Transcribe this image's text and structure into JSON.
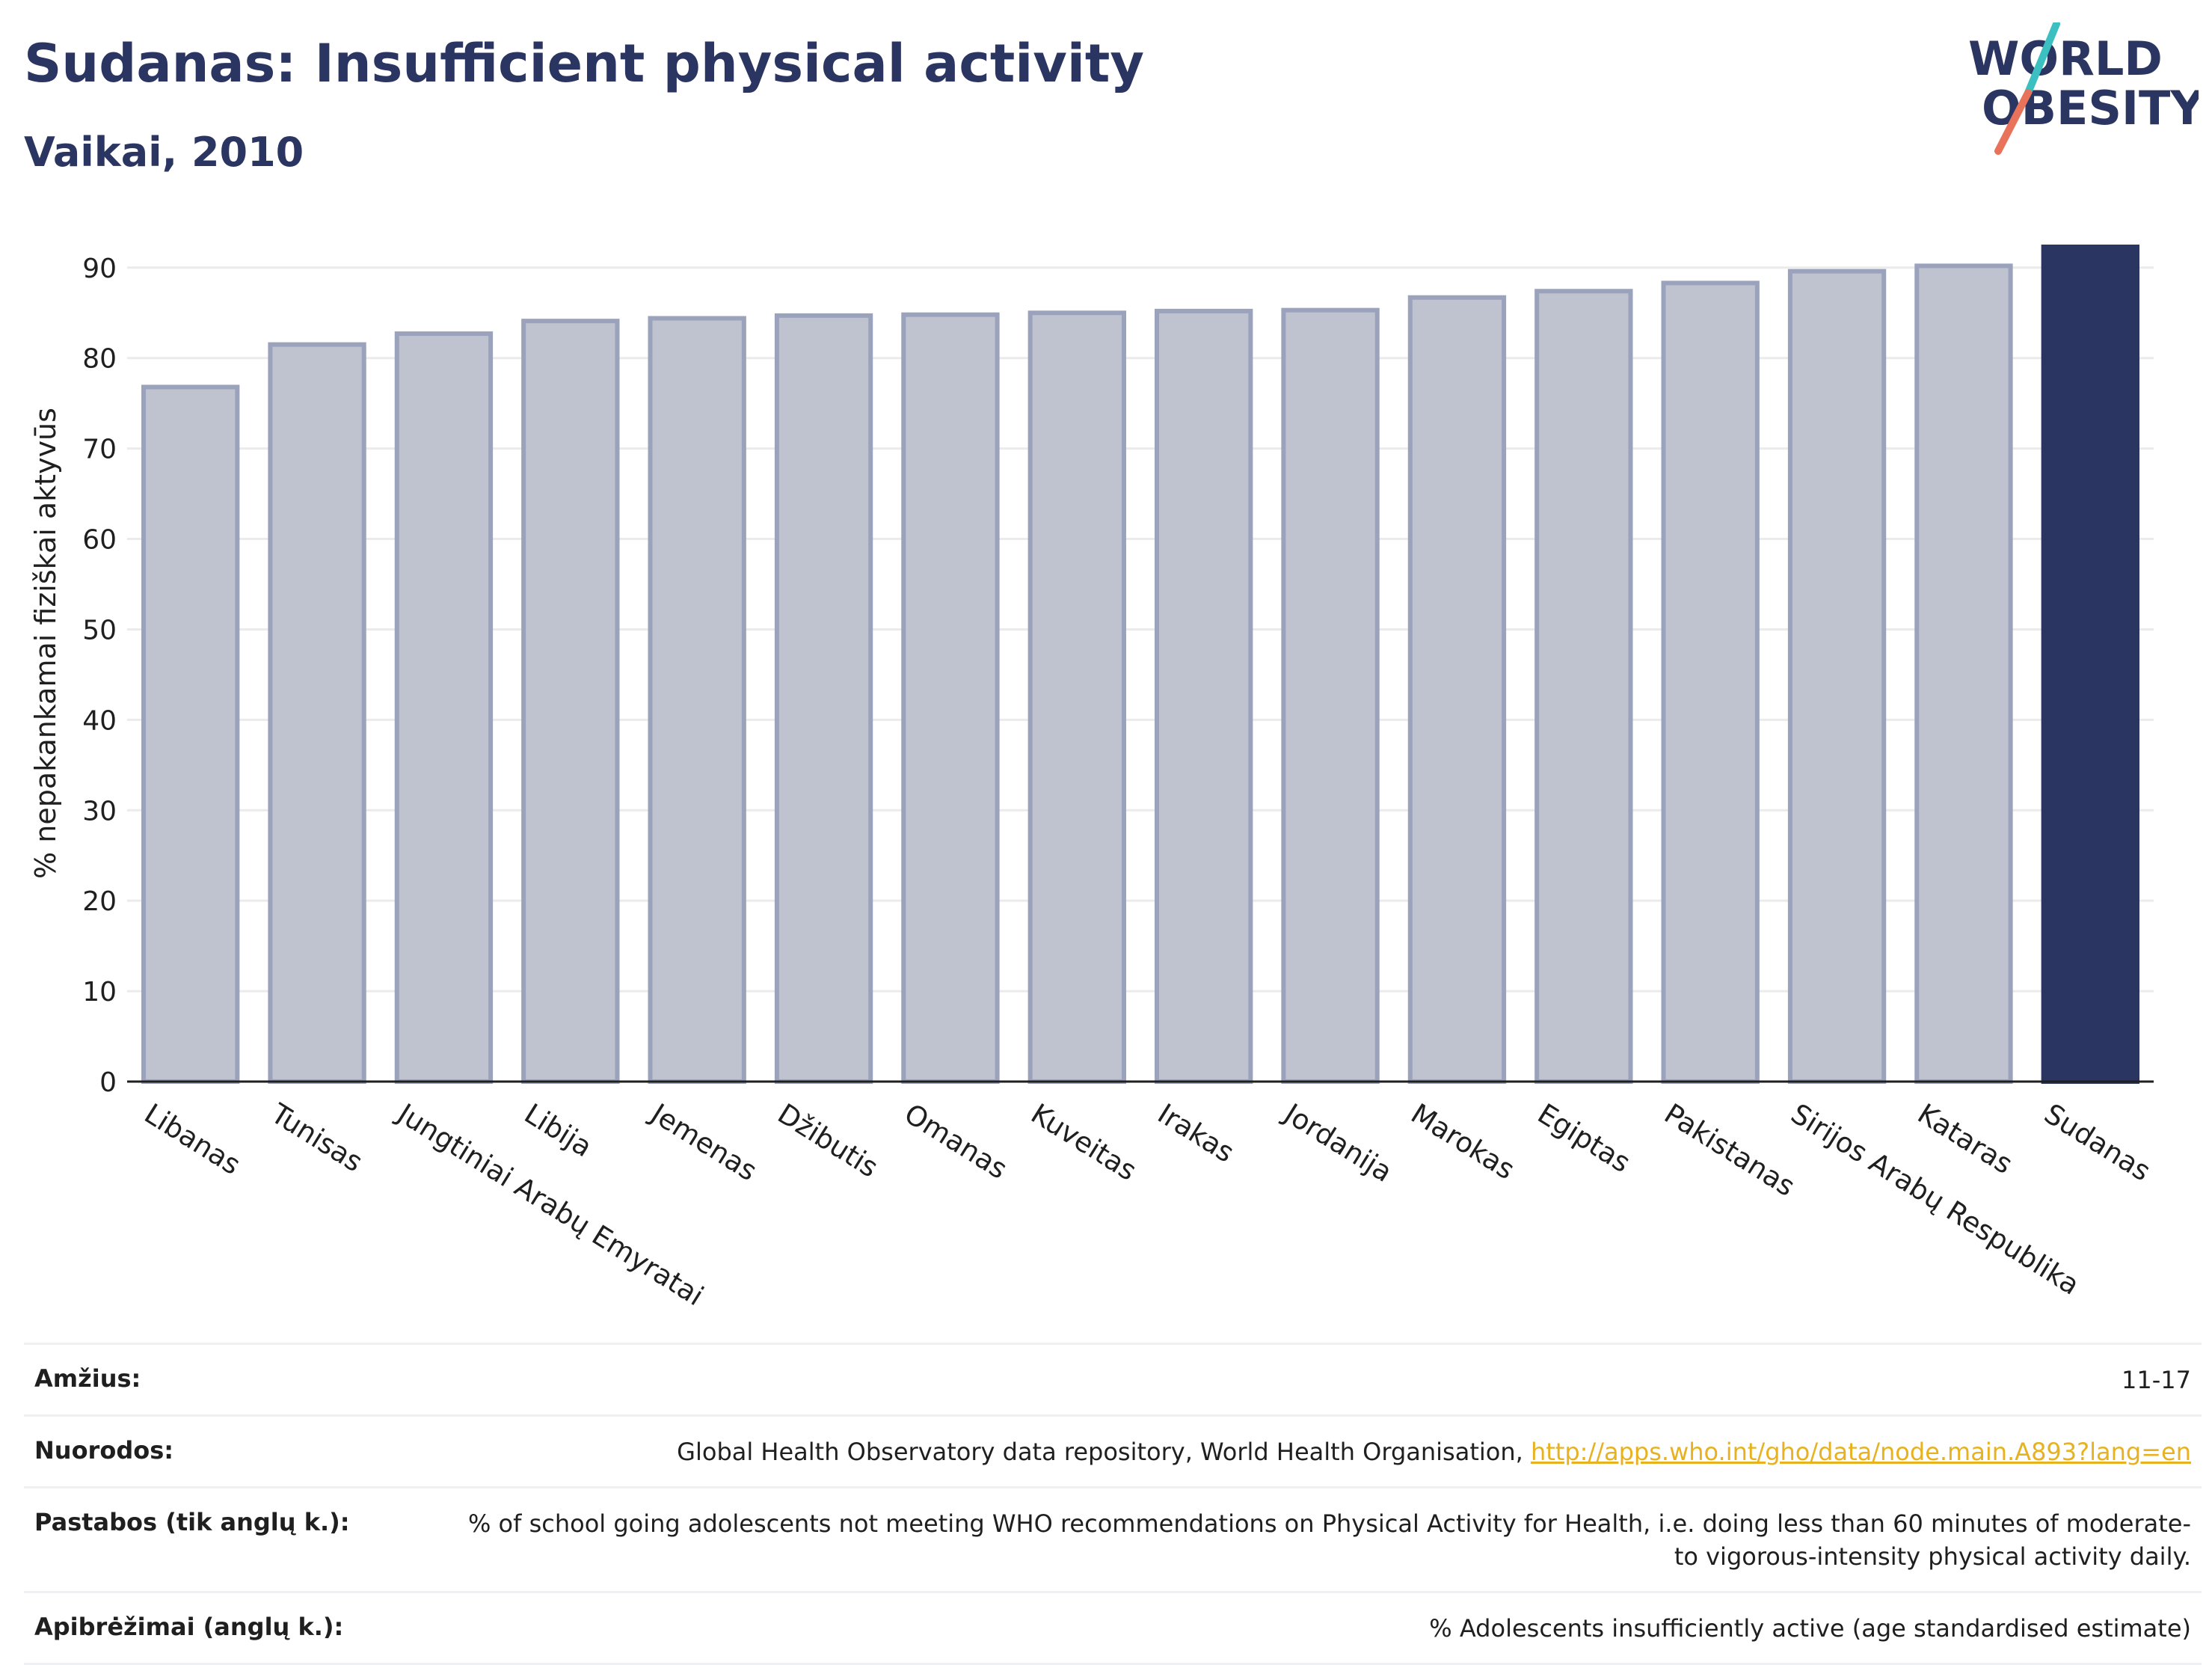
{
  "header": {
    "title": "Sudanas: Insufficient physical activity",
    "subtitle": "Vaikai, 2010"
  },
  "logo": {
    "line1": "WORLD",
    "line2": "OBESITY",
    "accent_teal": "#3bbfc1",
    "accent_red": "#e8735a",
    "text_color": "#2b3561"
  },
  "colors": {
    "bar_default": "#bfc2cf",
    "bar_default_border": "#9ba2bb",
    "bar_highlight": "#2b3561",
    "grid": "#ebebeb",
    "axis": "#1f1f1f"
  },
  "chart_data": {
    "type": "bar",
    "categories": [
      "Libanas",
      "Tunisas",
      "Jungtiniai Arabų Emyratai",
      "Libija",
      "Jemenas",
      "Džibutis",
      "Omanas",
      "Kuveitas",
      "Irakas",
      "Jordanija",
      "Marokas",
      "Egiptas",
      "Pakistanas",
      "Sirijos Arabų Respublika",
      "Kataras",
      "Sudanas"
    ],
    "values": [
      76.8,
      81.5,
      82.7,
      84.1,
      84.4,
      84.7,
      84.8,
      85.0,
      85.2,
      85.3,
      86.7,
      87.4,
      88.3,
      89.6,
      90.2,
      92.3
    ],
    "highlight": "Sudanas",
    "title": "Sudanas: Insufficient physical activity",
    "subtitle": "Vaikai, 2010",
    "xlabel": "",
    "ylabel": "% nepakankamai fiziškai aktyvūs",
    "ylim": [
      0,
      92.3
    ],
    "yticks": [
      0,
      10,
      20,
      30,
      40,
      50,
      60,
      70,
      80,
      90
    ],
    "grid": true,
    "legend": "none"
  },
  "meta": {
    "rows": [
      {
        "label": "Amžius:",
        "value": "11-17",
        "link": ""
      },
      {
        "label": "Nuorodos:",
        "value": "Global Health Observatory data repository, World Health Organisation, ",
        "link": "http://apps.who.int/gho/data/node.main.A893?lang=en"
      },
      {
        "label": "Pastabos (tik anglų k.):",
        "value": "% of school going adolescents not meeting WHO recommendations on Physical Activity for Health, i.e. doing less than 60 minutes of moderate- to vigorous-intensity physical activity daily.",
        "link": ""
      },
      {
        "label": "Apibrėžimai (anglų k.):",
        "value": "% Adolescents insufficiently active (age standardised estimate)",
        "link": ""
      }
    ]
  }
}
